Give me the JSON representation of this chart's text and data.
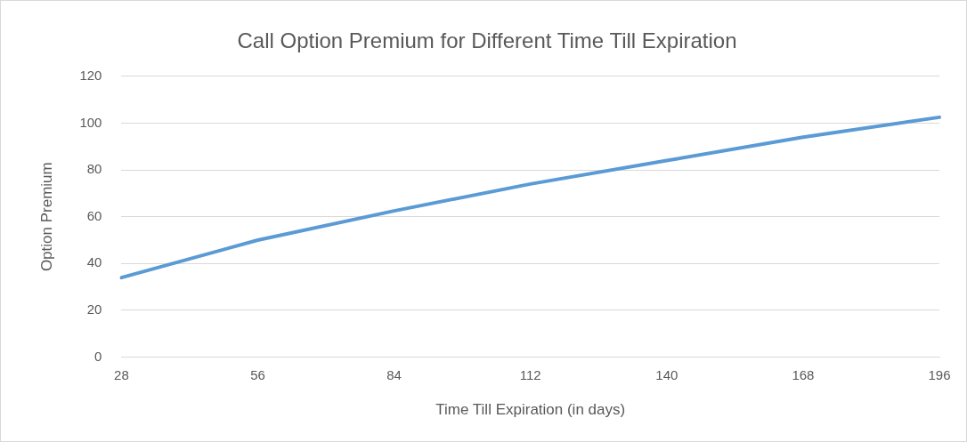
{
  "chart_data": {
    "type": "line",
    "title": "Call Option Premium for Different Time Till Expiration",
    "xlabel": "Time Till Expiration (in days)",
    "ylabel": "Option Premium",
    "categories": [
      "28",
      "56",
      "84",
      "112",
      "140",
      "168",
      "196"
    ],
    "series": [
      {
        "color": "#5b9bd5",
        "values": [
          34,
          50,
          62.5,
          74,
          84,
          94,
          102.5
        ]
      }
    ],
    "ylim": [
      0,
      120
    ],
    "yticks": [
      0,
      20,
      40,
      60,
      80,
      100,
      120
    ],
    "grid": "y",
    "legend": false,
    "marker": "none",
    "line_style": "solid"
  }
}
